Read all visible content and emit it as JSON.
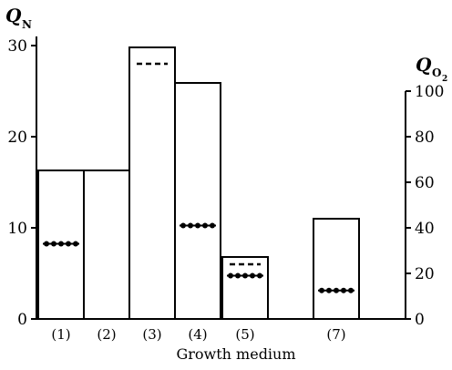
{
  "chart_data": {
    "type": "bar",
    "categories": [
      "(1)",
      "(2)",
      "(3)",
      "(4)",
      "(5)",
      "(7)"
    ],
    "series": [
      {
        "values": [
          16.3,
          16.3,
          29.8,
          25.9,
          6.8,
          11.0
        ]
      }
    ],
    "markers_dotted_qo2": [
      33,
      null,
      null,
      41,
      19,
      12.5
    ],
    "markers_dashed_qo2": [
      null,
      null,
      112,
      null,
      24,
      null
    ],
    "left_axis": {
      "label": "Q",
      "subscript": "N",
      "ylim": [
        0,
        30
      ],
      "ticks": [
        "0",
        "10",
        "20",
        "30"
      ]
    },
    "right_axis": {
      "label": "Q",
      "subscript": "O",
      "subscript2": "2",
      "ylim": [
        0,
        120
      ],
      "ticks": [
        "0",
        "20",
        "40",
        "60",
        "80",
        "100"
      ]
    },
    "xlabel": "Growth medium",
    "colors": {
      "stroke": "#000000",
      "fill": "#ffffff"
    }
  }
}
